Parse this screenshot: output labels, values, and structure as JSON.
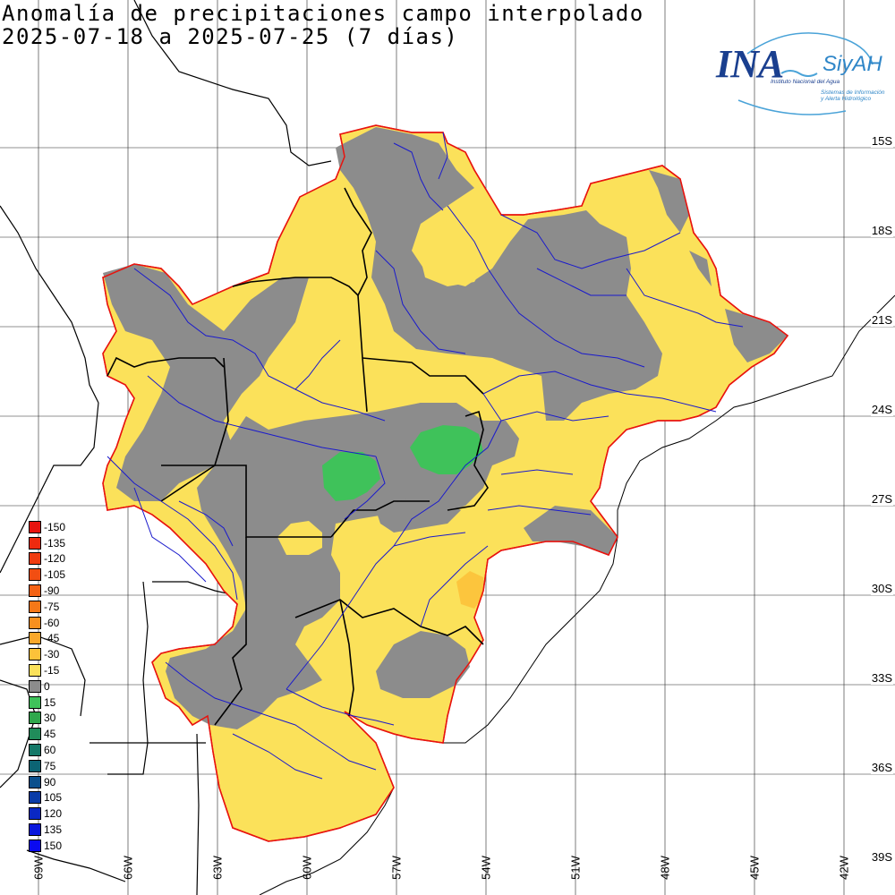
{
  "title": {
    "line1": "Anomalía de precipitaciones campo interpolado",
    "line2": "2025-07-18 a 2025-07-25 (7 días)"
  },
  "logo": {
    "name": "INA",
    "system": "SiyAH",
    "institute": "Instituto Nacional del Agua",
    "subtitle_line1": "Sistemas de Información",
    "subtitle_line2": "y Alerta Hidrológico"
  },
  "lat_labels": [
    "15S",
    "18S",
    "21S",
    "24S",
    "27S",
    "30S",
    "33S",
    "36S",
    "39S"
  ],
  "lon_labels": [
    "69W",
    "66W",
    "63W",
    "60W",
    "57W",
    "54W",
    "51W",
    "48W",
    "45W",
    "42W"
  ],
  "legend": {
    "entries": [
      {
        "label": "-150",
        "color": "#e8130e"
      },
      {
        "label": "-135",
        "color": "#ee2a0f"
      },
      {
        "label": "-120",
        "color": "#f03c10"
      },
      {
        "label": "-105",
        "color": "#f24e12"
      },
      {
        "label": "-90",
        "color": "#f46214"
      },
      {
        "label": "-75",
        "color": "#f67818"
      },
      {
        "label": "-60",
        "color": "#f8901e"
      },
      {
        "label": "-45",
        "color": "#faa82a"
      },
      {
        "label": "-30",
        "color": "#fcc23a"
      },
      {
        "label": "-15",
        "color": "#fbe15a"
      },
      {
        "label": "0",
        "color": "#8c8c8c"
      },
      {
        "label": "15",
        "color": "#3fc25a"
      },
      {
        "label": "30",
        "color": "#2fa84c"
      },
      {
        "label": "45",
        "color": "#208c5a"
      },
      {
        "label": "60",
        "color": "#147868"
      },
      {
        "label": "75",
        "color": "#0c6474"
      },
      {
        "label": "90",
        "color": "#0a4f8c"
      },
      {
        "label": "105",
        "color": "#0a3ca8"
      },
      {
        "label": "120",
        "color": "#0a28c4"
      },
      {
        "label": "135",
        "color": "#0a18dc"
      },
      {
        "label": "150",
        "color": "#0a0af0"
      }
    ]
  },
  "colors": {
    "negative_small": "#fbe15a",
    "neutral": "#8c8c8c",
    "positive_small": "#3fc25a",
    "negative_medium": "#fcc23a",
    "basin_outline": "#e8130e",
    "rivers": "#1a1acc"
  }
}
